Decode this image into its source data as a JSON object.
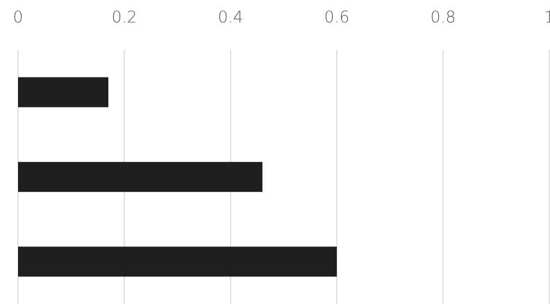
{
  "chart_data": {
    "type": "bar",
    "orientation": "horizontal",
    "categories": [
      null,
      null,
      null
    ],
    "values": [
      0.17,
      0.46,
      0.6
    ],
    "color": "#1f1f1f",
    "xlim": [
      0,
      1
    ],
    "xticks": [
      0,
      0.2,
      0.4,
      0.6,
      0.8,
      1
    ],
    "grid": true
  }
}
